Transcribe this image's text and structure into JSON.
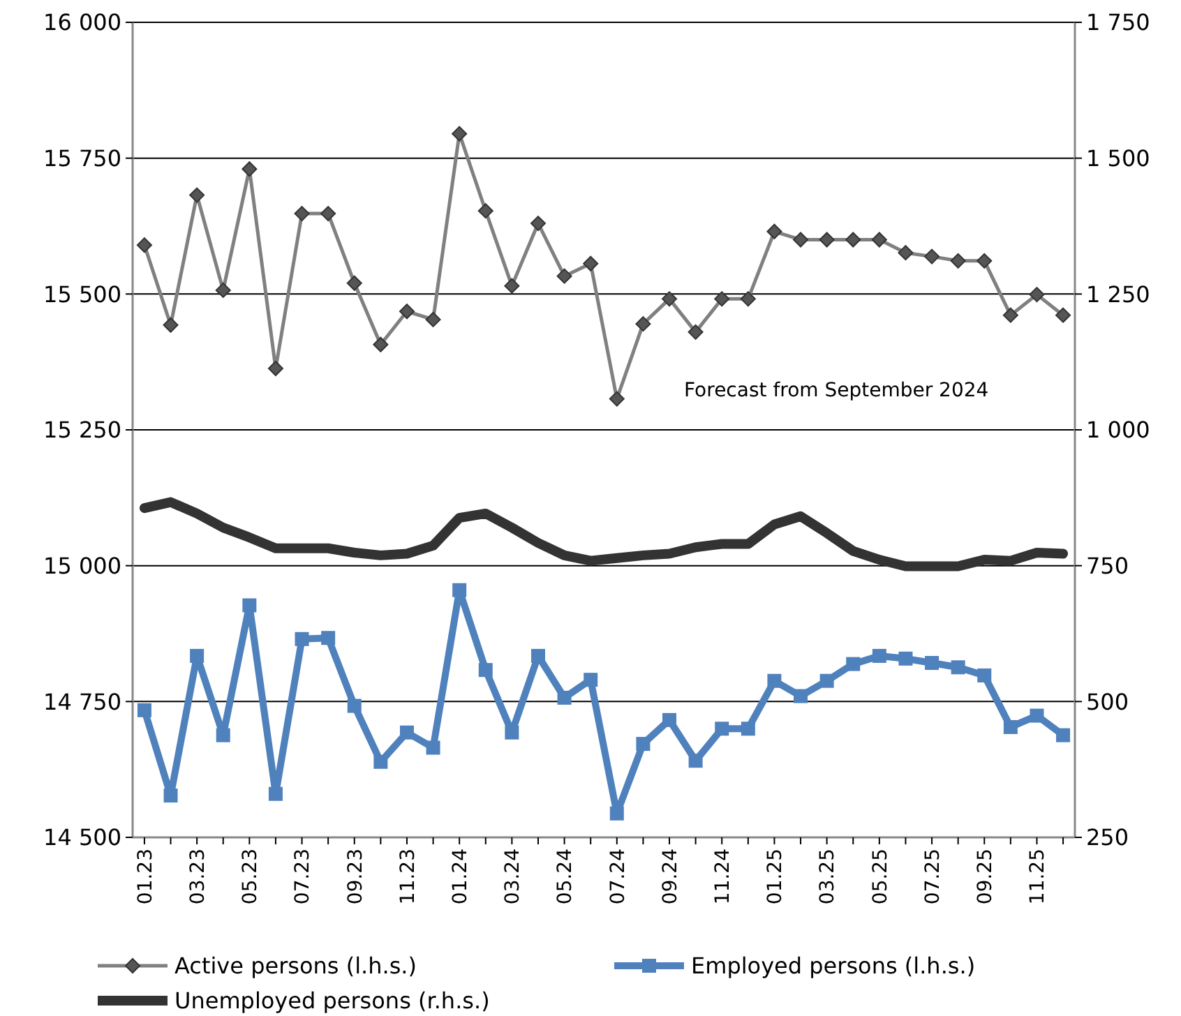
{
  "chart_data": {
    "type": "line",
    "categories": [
      "01.23",
      null,
      "03.23",
      null,
      "05.23",
      null,
      "07.23",
      null,
      "09.23",
      null,
      "11.23",
      null,
      "01.24",
      null,
      "03.24",
      null,
      "05.24",
      null,
      "07.24",
      null,
      "09.24",
      null,
      "11.24",
      null,
      "01.25",
      null,
      "03.25",
      null,
      "05.25",
      null,
      "07.25",
      null,
      "09.25",
      null,
      "11.25",
      null
    ],
    "series": [
      {
        "name": "Active persons (l.h.s.)",
        "color": "#808080",
        "marker": "diamond",
        "values": [
          15590,
          15443,
          15682,
          15507,
          15730,
          15363,
          15648,
          15648,
          15520,
          15407,
          15468,
          15453,
          15795,
          15653,
          15515,
          15630,
          15533,
          15556,
          15307,
          15445,
          15491,
          15430,
          15491,
          15491,
          15615,
          15600,
          15600,
          15600,
          15600,
          15576,
          15569,
          15561,
          15561,
          15461,
          15499,
          15461
        ]
      },
      {
        "name": "Employed persons (l.h.s.)",
        "color": "#4f81bd",
        "marker": "square",
        "values": [
          14734,
          14577,
          14834,
          14688,
          14927,
          14580,
          14865,
          14867,
          14742,
          14639,
          14693,
          14665,
          14955,
          14808,
          14693,
          14834,
          14757,
          14790,
          14544,
          14672,
          14716,
          14641,
          14700,
          14700,
          14788,
          14760,
          14788,
          14819,
          14834,
          14829,
          14821,
          14813,
          14798,
          14703,
          14724,
          14688
        ]
      },
      {
        "name": "Unemployed persons (r.h.s.)",
        "color": "#333333",
        "marker": "none",
        "axis": "y2",
        "values": [
          856,
          867,
          846,
          820,
          802,
          782,
          782,
          782,
          774,
          769,
          772,
          787,
          838,
          846,
          820,
          792,
          769,
          759,
          764,
          769,
          772,
          784,
          790,
          790,
          826,
          841,
          810,
          777,
          761,
          749,
          749,
          749,
          761,
          759,
          774,
          772
        ]
      }
    ],
    "ylim": [
      14500,
      16000
    ],
    "yticks": [
      {
        "value": 14500,
        "label": "14 500"
      },
      {
        "value": 14750,
        "label": "14 750"
      },
      {
        "value": 15000,
        "label": "15 000"
      },
      {
        "value": 15250,
        "label": "15 250"
      },
      {
        "value": 15500,
        "label": "15 500"
      },
      {
        "value": 15750,
        "label": "15 750"
      },
      {
        "value": 16000,
        "label": "16 000"
      }
    ],
    "y2lim": [
      250,
      1750
    ],
    "y2ticks": [
      250,
      500,
      750,
      {
        "value": 1000,
        "label": "1 000"
      },
      {
        "value": 1250,
        "label": "1 250"
      },
      {
        "value": 1500,
        "label": "1 500"
      },
      {
        "value": 1750,
        "label": "1 750"
      }
    ],
    "grid": "y",
    "legend": "bottom",
    "annotations": [
      "Forecast from September 2024"
    ]
  }
}
